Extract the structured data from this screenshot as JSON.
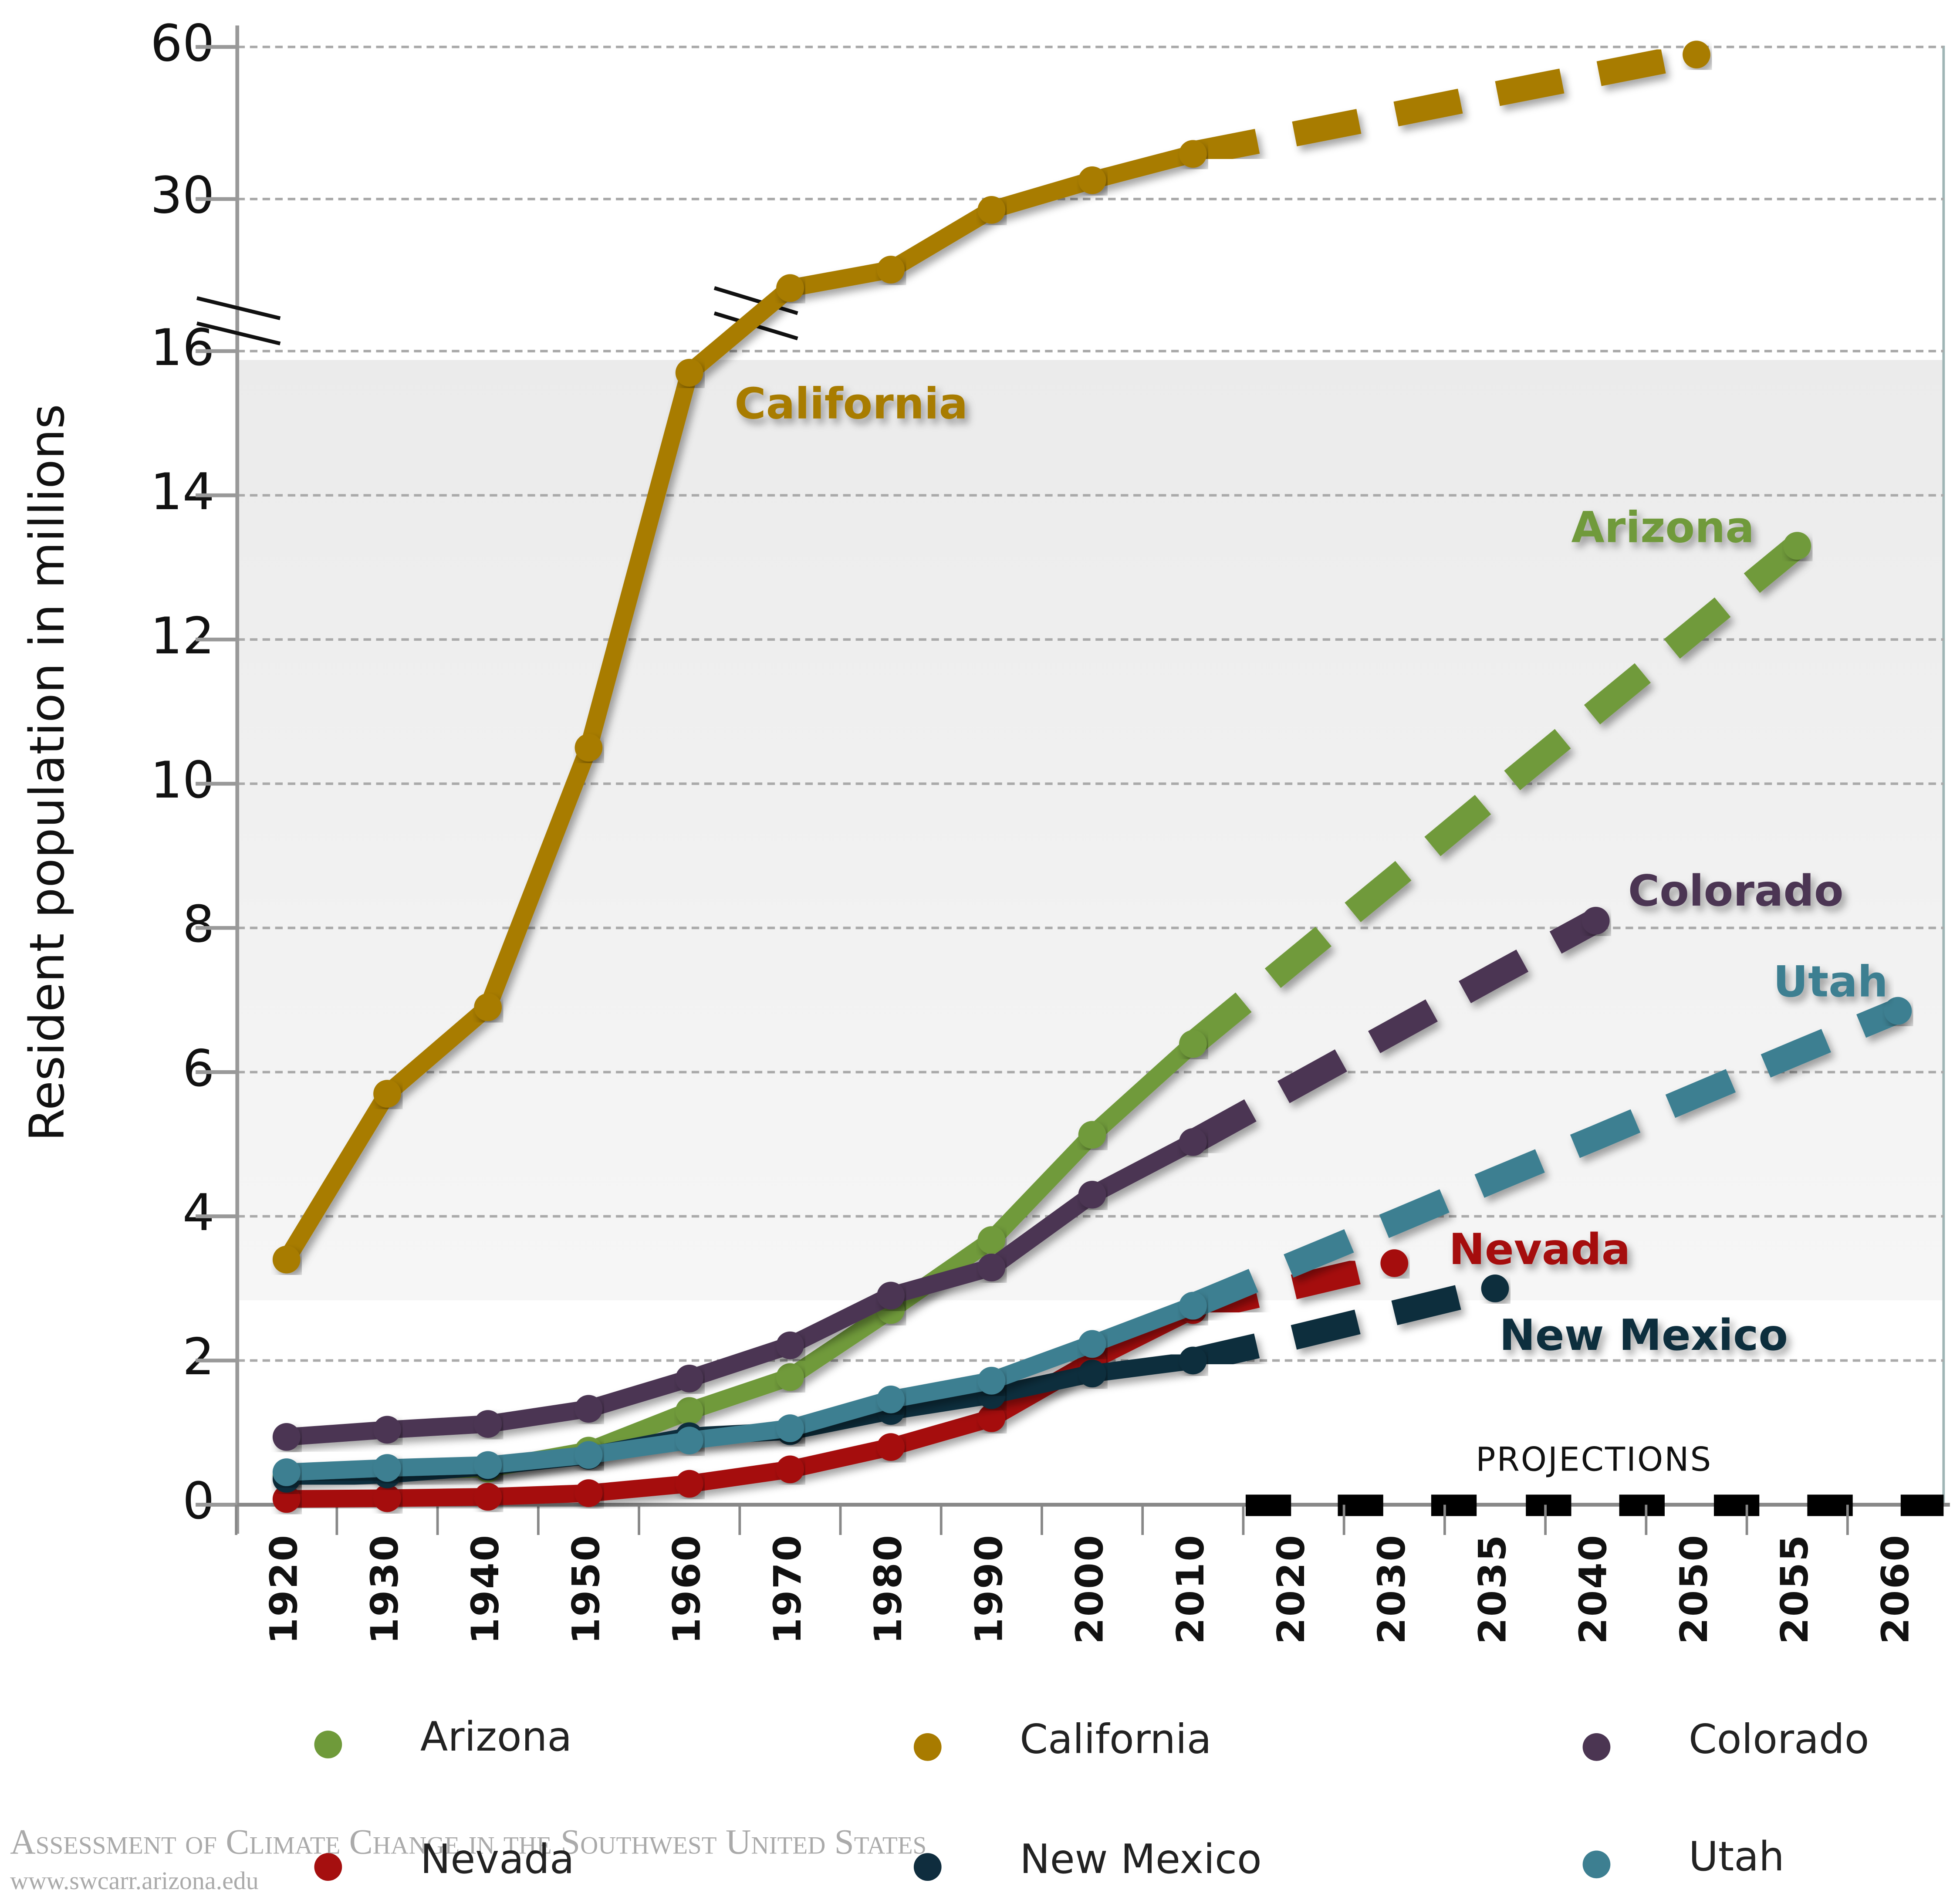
{
  "chart_data": {
    "type": "line",
    "y_label": "Resident population in millions",
    "categories": [
      "1920",
      "1930",
      "1940",
      "1950",
      "1960",
      "1970",
      "1980",
      "1990",
      "2000",
      "2010",
      "2020",
      "2030",
      "2035",
      "2040",
      "2050",
      "2055",
      "2060"
    ],
    "ylim": [
      0,
      60
    ],
    "yticks": [
      0,
      2,
      4,
      6,
      8,
      10,
      12,
      14,
      16,
      30,
      60
    ],
    "axis_break": true,
    "grid": true,
    "projection_label": "PROJECTIONS",
    "series": [
      {
        "name": "Arizona",
        "color": "#6f9a3a",
        "values": [
          0.4,
          0.47,
          0.5,
          0.75,
          1.3,
          1.77,
          2.7,
          3.67,
          5.13,
          6.39,
          null,
          null,
          null,
          null,
          null,
          null,
          null
        ],
        "projection": [
          null,
          null,
          null,
          null,
          null,
          null,
          null,
          null,
          null,
          null,
          7.54,
          8.69,
          9.85,
          11.0,
          12.15,
          13.3,
          null
        ]
      },
      {
        "name": "California",
        "color": "#a87b00",
        "values": [
          3.4,
          5.7,
          6.9,
          10.5,
          15.7,
          21.8,
          23.5,
          29,
          33.7,
          38.9,
          null,
          null,
          null,
          null,
          null,
          null,
          null
        ],
        "projection": [
          null,
          null,
          null,
          null,
          null,
          null,
          null,
          null,
          null,
          null,
          42.8,
          46.7,
          50.7,
          54.6,
          58.5,
          null,
          null
        ]
      },
      {
        "name": "Colorado",
        "color": "#4b3552",
        "values": [
          0.94,
          1.04,
          1.12,
          1.33,
          1.75,
          2.21,
          2.9,
          3.29,
          4.3,
          5.03,
          null,
          null,
          null,
          null,
          null,
          null,
          null
        ],
        "projection": [
          null,
          null,
          null,
          null,
          null,
          null,
          null,
          null,
          null,
          null,
          5.8,
          6.57,
          7.34,
          8.1,
          null,
          null,
          null
        ]
      },
      {
        "name": "Nevada",
        "color": "#a50f0f",
        "values": [
          0.08,
          0.09,
          0.11,
          0.16,
          0.29,
          0.49,
          0.8,
          1.2,
          2.0,
          2.7,
          null,
          null,
          null,
          null,
          null,
          null,
          null
        ],
        "projection": [
          null,
          null,
          null,
          null,
          null,
          null,
          null,
          null,
          null,
          null,
          3.02,
          3.35,
          null,
          null,
          null,
          null,
          null
        ]
      },
      {
        "name": "New Mexico",
        "color": "#0f2d3e",
        "values": [
          0.36,
          0.42,
          0.53,
          0.68,
          0.95,
          1.02,
          1.3,
          1.52,
          1.82,
          2.0,
          null,
          null,
          null,
          null,
          null,
          null,
          null
        ],
        "projection": [
          null,
          null,
          null,
          null,
          null,
          null,
          null,
          null,
          null,
          null,
          2.32,
          2.66,
          3.0,
          null,
          null,
          null,
          null
        ]
      },
      {
        "name": "Utah",
        "color": "#3d7f91",
        "values": [
          0.45,
          0.51,
          0.55,
          0.69,
          0.89,
          1.06,
          1.46,
          1.72,
          2.23,
          2.76,
          null,
          null,
          null,
          null,
          null,
          null,
          null
        ],
        "projection": [
          null,
          null,
          null,
          null,
          null,
          null,
          null,
          null,
          null,
          null,
          3.34,
          3.92,
          4.51,
          5.09,
          5.68,
          6.27,
          6.85
        ]
      }
    ]
  },
  "footer": {
    "title": "Assessment of Climate Change in the Southwest United States",
    "url": "www.swcarr.arizona.edu"
  }
}
